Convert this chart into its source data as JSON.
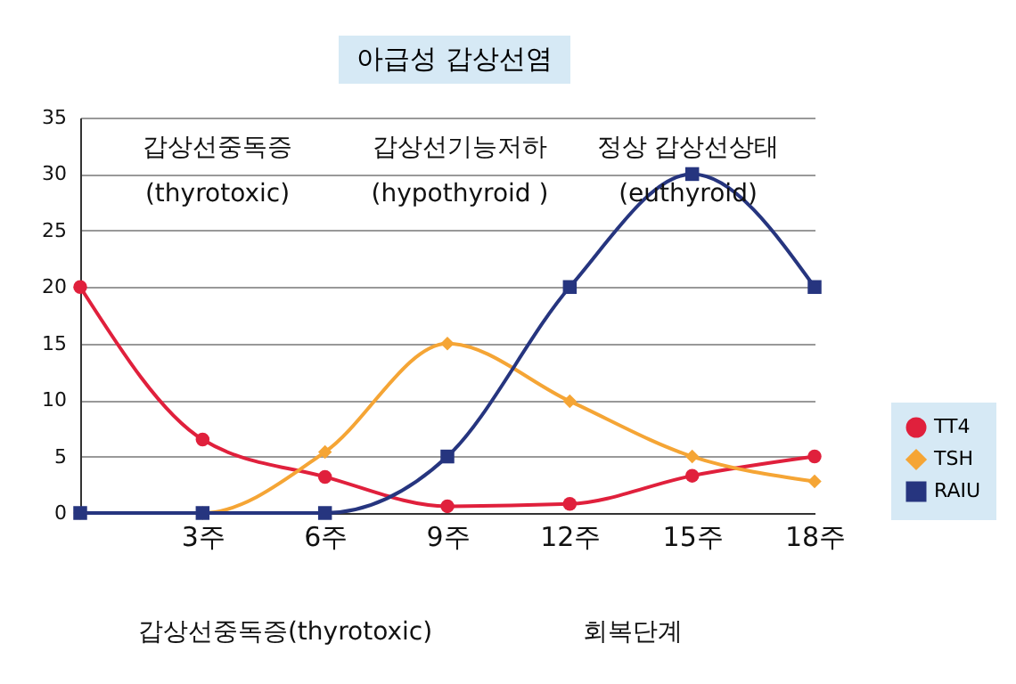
{
  "chart_data": {
    "type": "line",
    "title": "아급성 갑상선염",
    "categories": [
      null,
      "3주",
      "6주",
      "9주",
      "12주",
      "15주",
      "18주"
    ],
    "series": [
      {
        "name": "TT4",
        "color": "#e0203c",
        "marker": "circle",
        "values": [
          20,
          6.5,
          3.2,
          0.6,
          0.8,
          3.3,
          5
        ]
      },
      {
        "name": "TSH",
        "color": "#f5a535",
        "marker": "diamond",
        "values": [
          0,
          0,
          5.4,
          15,
          9.9,
          5,
          2.8
        ]
      },
      {
        "name": "RAIU",
        "color": "#26357f",
        "marker": "square",
        "values": [
          0,
          0,
          0,
          5,
          20,
          30,
          20
        ]
      }
    ],
    "ylim": [
      0,
      35
    ],
    "yticks": [
      0,
      5,
      10,
      15,
      20,
      25,
      30,
      35
    ],
    "grid": "y",
    "legend": "right",
    "annotations": [
      "갑상선중독증\n(thyrotoxic)",
      "갑상선기능저하\n(hypothyroid )",
      "정상 갑상선상태\n(euthyroid)",
      "갑상선중독증(thyrotoxic)",
      "회복단계"
    ]
  }
}
